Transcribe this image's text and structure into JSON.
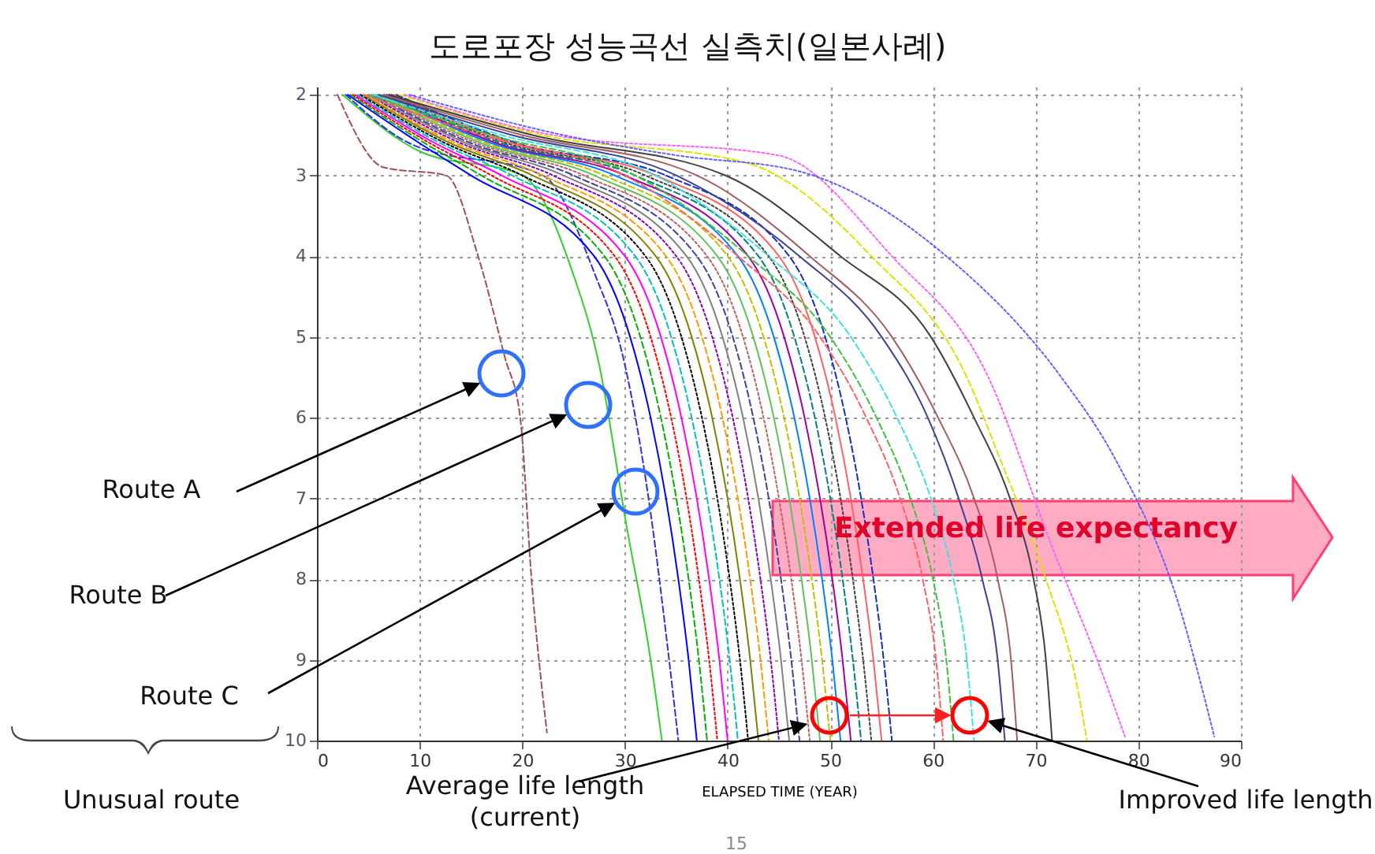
{
  "chart_data": {
    "type": "line",
    "title": "도로포장 성능곡선 실측치(일본사례)",
    "xlabel": "ELAPSED TIME (YEAR)",
    "xlim": [
      0,
      90
    ],
    "xticks": [
      0,
      10,
      20,
      30,
      40,
      50,
      60,
      70,
      80,
      90
    ],
    "ylim": [
      10,
      1.9
    ],
    "yticks": [
      2,
      3,
      4,
      5,
      6,
      7,
      8,
      9,
      10
    ],
    "grid": true,
    "legend": false,
    "annotations": [
      "Route A",
      "Route B",
      "Route C",
      "Unusual route",
      {
        "text": "Average life length\n(current)",
        "x": 47.6,
        "y": 9.8
      },
      "Improved life length",
      "Extended life expectancy",
      "15"
    ],
    "series": [
      {
        "color": "#a05050",
        "line_style": "dashed",
        "x": [
          2,
          6.5,
          12.6,
          15.7,
          18.3,
          19.8,
          20.9,
          22.4
        ],
        "values": [
          2,
          2.9,
          3,
          4,
          5.25,
          6,
          8,
          9.9
        ]
      },
      {
        "color": "#30d030",
        "line_style": "solid",
        "x": [
          2.5,
          10,
          20,
          24.9,
          27.5,
          30.1,
          32.5,
          33.6
        ],
        "values": [
          2,
          2.7,
          3,
          4.2,
          5.35,
          7.3,
          9,
          10
        ]
      },
      {
        "color": "#3030e0",
        "line_style": "dashed",
        "x": [
          2.8,
          9,
          22,
          27,
          30,
          32.3,
          34.3,
          35.2
        ],
        "values": [
          2,
          2.6,
          3,
          4.2,
          5.35,
          7,
          9,
          10
        ]
      },
      {
        "color": "#0000ff",
        "line_style": "solid",
        "x": [
          3,
          10,
          15,
          27,
          30.5,
          32.5,
          34,
          35.2,
          36.2,
          37
        ],
        "values": [
          2,
          2.6,
          3,
          4,
          5,
          6,
          7,
          8,
          9,
          10
        ]
      },
      {
        "color": "#00b000",
        "line_style": "dashed",
        "x": [
          3.25,
          10.5,
          16,
          28,
          31.5,
          33.5,
          35,
          36.2,
          37.2,
          38
        ],
        "values": [
          2,
          2.6,
          3,
          4,
          5,
          6,
          7,
          8,
          9,
          10
        ]
      },
      {
        "color": "#ff0000",
        "line_style": "dotted",
        "x": [
          3.5,
          11,
          17,
          29,
          32.5,
          34.5,
          36,
          37.2,
          38.2,
          39
        ],
        "values": [
          2,
          2.6,
          3,
          4,
          5,
          6,
          7,
          8,
          9,
          10
        ]
      },
      {
        "color": "#ff00ff",
        "line_style": "solid",
        "x": [
          3.75,
          11.5,
          18,
          30,
          33.5,
          35.5,
          37,
          38.2,
          39.2,
          40
        ],
        "values": [
          2,
          2.6,
          3,
          4,
          5,
          6,
          7,
          8,
          9,
          10
        ]
      },
      {
        "color": "#00c0c0",
        "line_style": "dashed",
        "x": [
          4,
          12,
          19,
          31,
          34.5,
          36.5,
          38,
          39.2,
          40.2,
          41
        ],
        "values": [
          2,
          2.6,
          3,
          4,
          5,
          6,
          7,
          8,
          9,
          10
        ]
      },
      {
        "color": "#000000",
        "line_style": "dotted",
        "x": [
          4.25,
          12.5,
          20,
          32,
          35.5,
          37.5,
          39,
          40.2,
          41.2,
          42
        ],
        "values": [
          2,
          2.6,
          3,
          4,
          5,
          6,
          7,
          8,
          9,
          10
        ]
      },
      {
        "color": "#808000",
        "line_style": "solid",
        "x": [
          4.5,
          13,
          21,
          33,
          36.5,
          38.5,
          40,
          41.2,
          42.2,
          43
        ],
        "values": [
          2,
          2.6,
          3,
          4,
          5,
          6,
          7,
          8,
          9,
          10
        ]
      },
      {
        "color": "#ff9900",
        "line_style": "dashed",
        "x": [
          4.75,
          13.5,
          22,
          34,
          37.5,
          39.5,
          41,
          42.2,
          43.2,
          44
        ],
        "values": [
          2,
          2.6,
          3,
          4,
          5,
          6,
          7,
          8,
          9,
          10
        ]
      },
      {
        "color": "#8000c0",
        "line_style": "dotted",
        "x": [
          5,
          14,
          23,
          35,
          38.5,
          40.5,
          42,
          43.2,
          44.2,
          45
        ],
        "values": [
          2,
          2.6,
          3,
          4,
          5,
          6,
          7,
          8,
          9,
          10
        ]
      },
      {
        "color": "#808080",
        "line_style": "solid",
        "x": [
          5.25,
          14.5,
          24,
          36,
          39.5,
          41.5,
          43,
          44.2,
          45.2,
          46
        ],
        "values": [
          2,
          2.6,
          3,
          4,
          5,
          6,
          7,
          8,
          9,
          10
        ]
      },
      {
        "color": "#4040a0",
        "line_style": "dashed",
        "x": [
          5.5,
          15,
          25,
          37,
          40.5,
          42.5,
          44,
          45.2,
          46.2,
          47
        ],
        "values": [
          2,
          2.6,
          3,
          4,
          5,
          6,
          7,
          8,
          9,
          10
        ]
      },
      {
        "color": "#c06060",
        "line_style": "dotted",
        "x": [
          5.75,
          15.5,
          26,
          38,
          41.5,
          43.5,
          45,
          46.2,
          47.2,
          48
        ],
        "values": [
          2,
          2.6,
          3,
          4,
          5,
          6,
          7,
          8,
          9,
          10
        ]
      },
      {
        "color": "#60c060",
        "line_style": "solid",
        "x": [
          6,
          16,
          27,
          39,
          42.5,
          44.5,
          46,
          47.2,
          48.2,
          49
        ],
        "values": [
          2,
          2.6,
          3,
          4,
          5,
          6,
          7,
          8,
          9,
          10
        ]
      },
      {
        "color": "#c0c000",
        "line_style": "dashed",
        "x": [
          6.25,
          16.5,
          28,
          40,
          43.5,
          45.5,
          47,
          48.2,
          49.2,
          50
        ],
        "values": [
          2,
          2.6,
          3,
          4,
          5,
          6,
          7,
          8,
          9,
          10
        ]
      },
      {
        "color": "#0080ff",
        "line_style": "solid",
        "x": [
          6.5,
          17,
          29,
          41,
          44.5,
          46.5,
          48,
          49.2,
          50.2,
          51
        ],
        "values": [
          2,
          2.6,
          3,
          4,
          5,
          6,
          7,
          8,
          9,
          10
        ]
      },
      {
        "color": "#a000a0",
        "line_style": "solid",
        "x": [
          6.75,
          17.5,
          30,
          42,
          45.5,
          47.5,
          49,
          50.2,
          51.2,
          52
        ],
        "values": [
          2,
          2.6,
          3,
          4,
          5,
          6,
          7,
          8,
          9,
          10
        ]
      },
      {
        "color": "#008080",
        "line_style": "dashed",
        "x": [
          7,
          18,
          31,
          43,
          46.5,
          48.5,
          50,
          51.2,
          52.2,
          53
        ],
        "values": [
          2,
          2.6,
          3,
          4,
          5,
          6,
          7,
          8,
          9,
          10
        ]
      },
      {
        "color": "#404040",
        "line_style": "dotted",
        "x": [
          7.25,
          18.5,
          32,
          44,
          47.5,
          49.5,
          51,
          52.2,
          53.2,
          54
        ],
        "values": [
          2,
          2.6,
          3,
          4,
          5,
          6,
          7,
          8,
          9,
          10
        ]
      },
      {
        "color": "#ff6060",
        "line_style": "solid",
        "x": [
          7.5,
          19,
          33,
          45,
          48.5,
          50.5,
          52,
          53.2,
          54.2,
          55
        ],
        "values": [
          2,
          2.6,
          3,
          4,
          5,
          6,
          7,
          8,
          9,
          10
        ]
      },
      {
        "color": "#1030c0",
        "line_style": "dashed",
        "x": [
          7.75,
          19.5,
          34,
          46,
          49.5,
          51.5,
          53,
          54.2,
          55.2,
          56
        ],
        "values": [
          2,
          2.6,
          3,
          4,
          5,
          6,
          7,
          8,
          9,
          10
        ]
      },
      {
        "color": "#ff6060",
        "line_style": "dashed",
        "x": [
          4.5,
          16,
          30,
          41,
          49,
          53.5,
          56.8,
          59,
          60.3,
          61
        ],
        "values": [
          2,
          2.5,
          3,
          4,
          5,
          6,
          7,
          8,
          9,
          10
        ]
      },
      {
        "color": "#40c040",
        "line_style": "dashed",
        "x": [
          5,
          17,
          31,
          42,
          50,
          54.5,
          57.8,
          60,
          61.3,
          62
        ],
        "values": [
          2,
          2.5,
          3,
          4,
          5,
          6,
          7,
          8,
          9,
          10
        ]
      },
      {
        "color": "#40e0e0",
        "line_style": "dashed",
        "x": [
          5.5,
          18,
          33,
          44,
          52,
          56.5,
          59.8,
          62,
          63.3,
          64
        ],
        "values": [
          2,
          2.5,
          3,
          4,
          5,
          6,
          7,
          8,
          9,
          10
        ]
      },
      {
        "color": "#404090",
        "line_style": "solid",
        "x": [
          6,
          19,
          35,
          47,
          55,
          59.5,
          62.5,
          64.8,
          66.3,
          67
        ],
        "values": [
          2,
          2.5,
          3,
          4,
          5,
          6,
          7,
          8,
          9,
          10
        ]
      },
      {
        "color": "#a06060",
        "line_style": "solid",
        "x": [
          6.5,
          20,
          37,
          48,
          56,
          60.5,
          64,
          66.3,
          67.6,
          68.2
        ],
        "values": [
          2,
          2.5,
          3,
          4,
          5,
          6,
          7,
          8,
          9,
          10
        ]
      },
      {
        "color": "#404040",
        "line_style": "solid",
        "x": [
          7,
          21,
          39.8,
          51,
          59.8,
          64,
          67.5,
          69.8,
          71,
          71.6
        ],
        "values": [
          2,
          2.5,
          3,
          4,
          5,
          6,
          7,
          8,
          9,
          10
        ]
      },
      {
        "color": "#e0e000",
        "line_style": "dashed",
        "x": [
          8,
          22,
          42,
          54,
          63.3,
          66.5,
          71,
          74,
          75
        ],
        "values": [
          2,
          2.5,
          2.85,
          4,
          5.5,
          6.5,
          8,
          9.3,
          10
        ]
      },
      {
        "color": "#ff60ff",
        "line_style": "dotted",
        "x": [
          8.5,
          23,
          44.9,
          56,
          65.4,
          71.6,
          76,
          78.7
        ],
        "values": [
          2,
          2.5,
          2.75,
          4,
          5.5,
          7.6,
          9,
          9.95
        ]
      },
      {
        "color": "#6060ff",
        "line_style": "dotted",
        "x": [
          9,
          24,
          35,
          47,
          61.3,
          72.5,
          77.7,
          83.9,
          87.4
        ],
        "values": [
          2,
          2.5,
          2.75,
          2.95,
          4,
          5.5,
          6.5,
          8.3,
          9.95
        ]
      }
    ]
  }
}
